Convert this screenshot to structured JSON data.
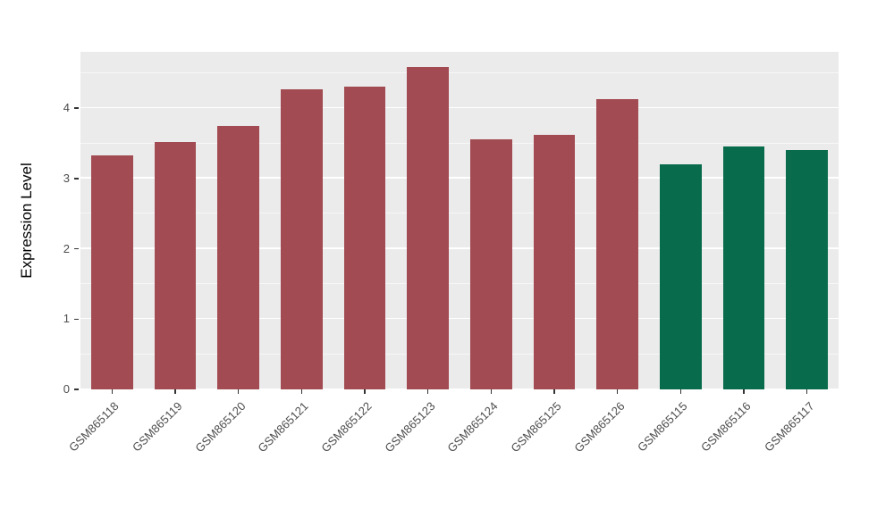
{
  "chart_data": {
    "type": "bar",
    "title": "",
    "xlabel": "",
    "ylabel": "Expression Level",
    "categories": [
      "GSM865118",
      "GSM865119",
      "GSM865120",
      "GSM865121",
      "GSM865122",
      "GSM865123",
      "GSM865124",
      "GSM865125",
      "GSM865126",
      "GSM865115",
      "GSM865116",
      "GSM865117"
    ],
    "values": [
      3.33,
      3.52,
      3.75,
      4.27,
      4.3,
      4.58,
      3.55,
      3.62,
      4.13,
      3.2,
      3.45,
      3.4
    ],
    "bar_colors": [
      "#A24B52",
      "#A24B52",
      "#A24B52",
      "#A24B52",
      "#A24B52",
      "#A24B52",
      "#A24B52",
      "#A24B52",
      "#A24B52",
      "#086C4C",
      "#086C4C",
      "#086C4C"
    ],
    "group_colors": {
      "maroon": "#A24B52",
      "green": "#086C4C"
    },
    "ylim": [
      0,
      4.8
    ],
    "yticks": [
      0,
      1,
      2,
      3,
      4
    ],
    "minor_yticks": [
      0.5,
      1.5,
      2.5,
      3.5,
      4.5
    ],
    "panel_bg": "#EBEBEB",
    "grid_color": "#FFFFFF",
    "axis_text_color": "#4D4D4D",
    "legend": "none",
    "grid": "on"
  }
}
